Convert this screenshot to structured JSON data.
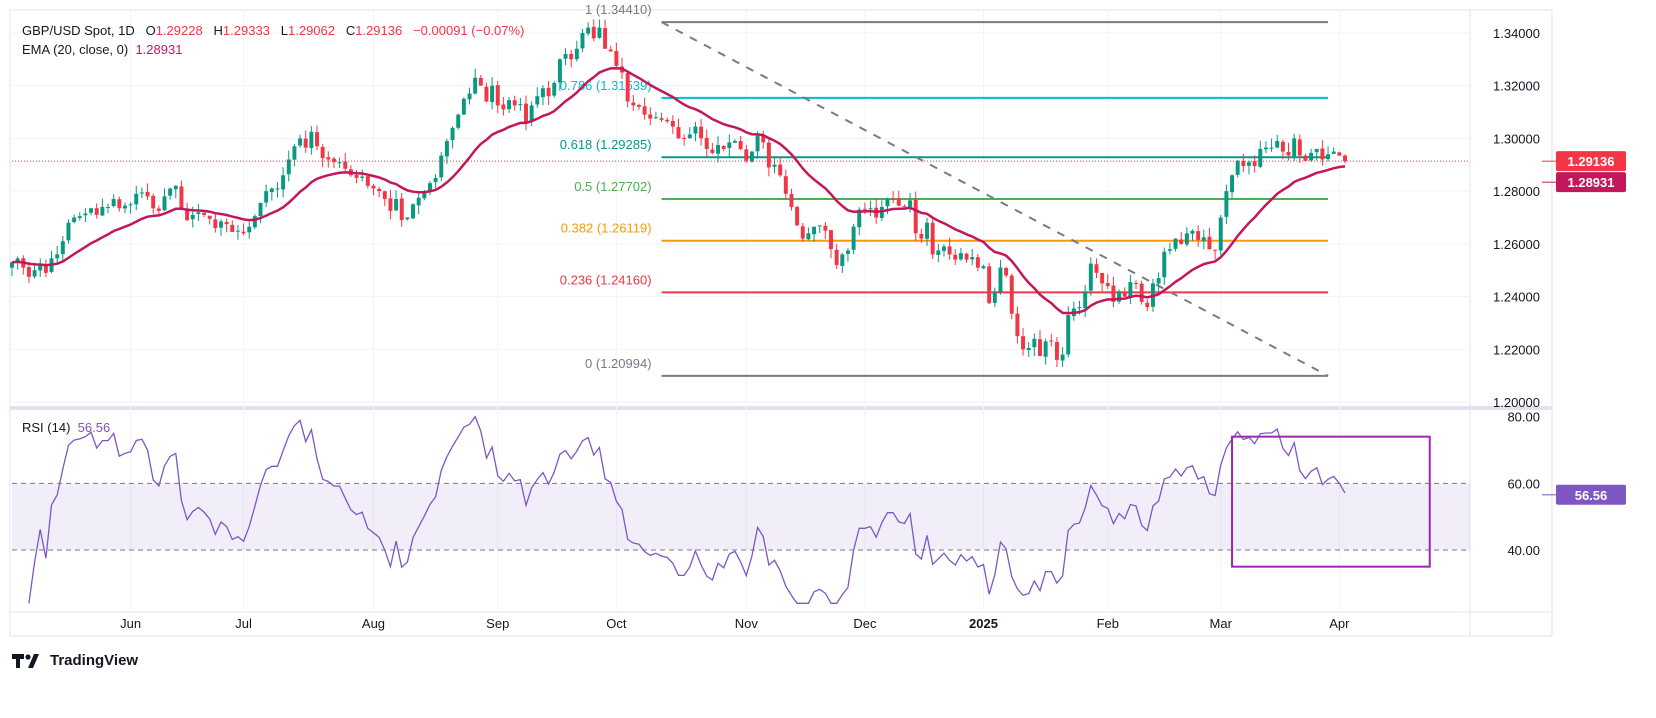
{
  "header": {
    "symbol": "GBP/USD Spot, 1D",
    "o_label": "O",
    "o": "1.29228",
    "h_label": "H",
    "h": "1.29333",
    "l_label": "L",
    "l": "1.29062",
    "c_label": "C",
    "c": "1.29136",
    "change": "−0.00091 (−0.07%)",
    "ema_label": "EMA (20, close, 0)",
    "ema_value": "1.28931",
    "rsi_label": "RSI (14)",
    "rsi_value": "56.56"
  },
  "footer": {
    "brand": "TradingView"
  },
  "colors": {
    "up": "#089981",
    "down": "#f23645",
    "ema": "#c2185b",
    "rsi": "#7e57c2",
    "last_price": "#f23645",
    "ema_tag": "#c2185b",
    "rsi_tag": "#7e57c2"
  },
  "chart_data": {
    "type": "candlestick",
    "price_axis": {
      "ticks": [
        "1.34000",
        "1.32000",
        "1.30000",
        "1.28000",
        "1.26000",
        "1.24000",
        "1.22000",
        "1.20000"
      ],
      "range": [
        1.1985,
        1.3487
      ]
    },
    "rsi_axis": {
      "ticks": [
        "80.00",
        "60.00",
        "40.00"
      ],
      "range": [
        22,
        82
      ],
      "bands": [
        40,
        60
      ]
    },
    "x_ticks": [
      {
        "label": "Jun",
        "bar": 21
      },
      {
        "label": "Jul",
        "bar": 41
      },
      {
        "label": "Aug",
        "bar": 64
      },
      {
        "label": "Sep",
        "bar": 86
      },
      {
        "label": "Oct",
        "bar": 107
      },
      {
        "label": "Nov",
        "bar": 130
      },
      {
        "label": "Dec",
        "bar": 151
      },
      {
        "label": "2025",
        "bar": 172,
        "bold": true
      },
      {
        "label": "Feb",
        "bar": 194
      },
      {
        "label": "Mar",
        "bar": 214
      },
      {
        "label": "Apr",
        "bar": 235
      }
    ],
    "closes": [
      1.253,
      1.2545,
      1.251,
      1.2475,
      1.25,
      1.252,
      1.249,
      1.2545,
      1.256,
      1.261,
      1.268,
      1.27,
      1.2705,
      1.2715,
      1.2735,
      1.271,
      1.274,
      1.274,
      1.277,
      1.2735,
      1.2745,
      1.275,
      1.279,
      1.2795,
      1.278,
      1.2735,
      1.2725,
      1.278,
      1.281,
      1.282,
      1.2735,
      1.269,
      1.271,
      1.272,
      1.271,
      1.2695,
      1.266,
      1.2685,
      1.2675,
      1.2645,
      1.265,
      1.264,
      1.2665,
      1.2705,
      1.2755,
      1.28,
      1.281,
      1.281,
      1.286,
      1.292,
      1.297,
      1.3,
      1.2965,
      1.3025,
      1.297,
      1.2925,
      1.292,
      1.291,
      1.291,
      1.2885,
      1.286,
      1.285,
      1.2855,
      1.282,
      1.281,
      1.28,
      1.277,
      1.2725,
      1.277,
      1.269,
      1.27,
      1.275,
      1.2775,
      1.28,
      1.283,
      1.285,
      1.2935,
      1.299,
      1.304,
      1.309,
      1.315,
      1.317,
      1.323,
      1.32,
      1.314,
      1.32,
      1.3125,
      1.311,
      1.3145,
      1.3125,
      1.313,
      1.306,
      1.3125,
      1.316,
      1.319,
      1.316,
      1.321,
      1.33,
      1.332,
      1.33,
      1.334,
      1.34,
      1.342,
      1.338,
      1.342,
      1.334,
      1.333,
      1.3275,
      1.325,
      1.314,
      1.3125,
      1.312,
      1.309,
      1.3075,
      1.308,
      1.307,
      1.3065,
      1.3045,
      1.3,
      1.3,
      1.3015,
      1.3045,
      1.3,
      1.296,
      1.2945,
      1.2975,
      1.296,
      1.2985,
      1.299,
      1.296,
      1.2915,
      1.295,
      1.301,
      1.2985,
      1.289,
      1.29,
      1.286,
      1.279,
      1.274,
      1.267,
      1.262,
      1.264,
      1.2665,
      1.267,
      1.265,
      1.258,
      1.252,
      1.256,
      1.2575,
      1.2665,
      1.273,
      1.273,
      1.2735,
      1.27,
      1.274,
      1.277,
      1.277,
      1.2745,
      1.274,
      1.2765,
      1.264,
      1.262,
      1.268,
      1.256,
      1.2575,
      1.259,
      1.256,
      1.254,
      1.2565,
      1.254,
      1.255,
      1.251,
      1.2515,
      1.2375,
      1.242,
      1.251,
      1.248,
      1.2335,
      1.225,
      1.22,
      1.2205,
      1.224,
      1.2175,
      1.223,
      1.223,
      1.216,
      1.218,
      1.233,
      1.2355,
      1.236,
      1.242,
      1.2525,
      1.249,
      1.245,
      1.244,
      1.238,
      1.242,
      1.24,
      1.2455,
      1.245,
      1.238,
      1.236,
      1.245,
      1.247,
      1.257,
      1.258,
      1.262,
      1.26,
      1.264,
      1.265,
      1.2615,
      1.2625,
      1.258,
      1.2575,
      1.27,
      1.28,
      1.286,
      1.2915,
      1.2895,
      1.291,
      1.2895,
      1.296,
      1.2965,
      1.2965,
      1.299,
      1.295,
      1.2935,
      1.3,
      1.2935,
      1.2915,
      1.2945,
      1.296,
      1.292,
      1.294,
      1.295,
      1.2935,
      1.29136
    ],
    "last_price_tag": "1.29136",
    "ema_tag": "1.28931",
    "rsi_tag": "56.56",
    "fibonacci": {
      "from_bar": 115,
      "to_bar": 233,
      "levels": [
        {
          "ratio": "1",
          "price": 1.3441,
          "label": "1 (1.34410)",
          "color": "#787b86"
        },
        {
          "ratio": "0.786",
          "price": 1.31539,
          "label": "0.786 (1.31539)",
          "color": "#00bcd4"
        },
        {
          "ratio": "0.618",
          "price": 1.29285,
          "label": "0.618 (1.29285)",
          "color": "#089981"
        },
        {
          "ratio": "0.5",
          "price": 1.27702,
          "label": "0.5 (1.27702)",
          "color": "#4caf50"
        },
        {
          "ratio": "0.382",
          "price": 1.26119,
          "label": "0.382 (1.26119)",
          "color": "#ff9800"
        },
        {
          "ratio": "0.236",
          "price": 1.2416,
          "label": "0.236 (1.24160)",
          "color": "#f23645"
        },
        {
          "ratio": "0",
          "price": 1.20994,
          "label": "0 (1.20994)",
          "color": "#787b86"
        }
      ]
    },
    "rsi_highlight_box": {
      "from_bar": 216,
      "to_bar": 251,
      "rsi_top": 74,
      "rsi_bottom": 35,
      "color": "#9c27b0"
    }
  }
}
